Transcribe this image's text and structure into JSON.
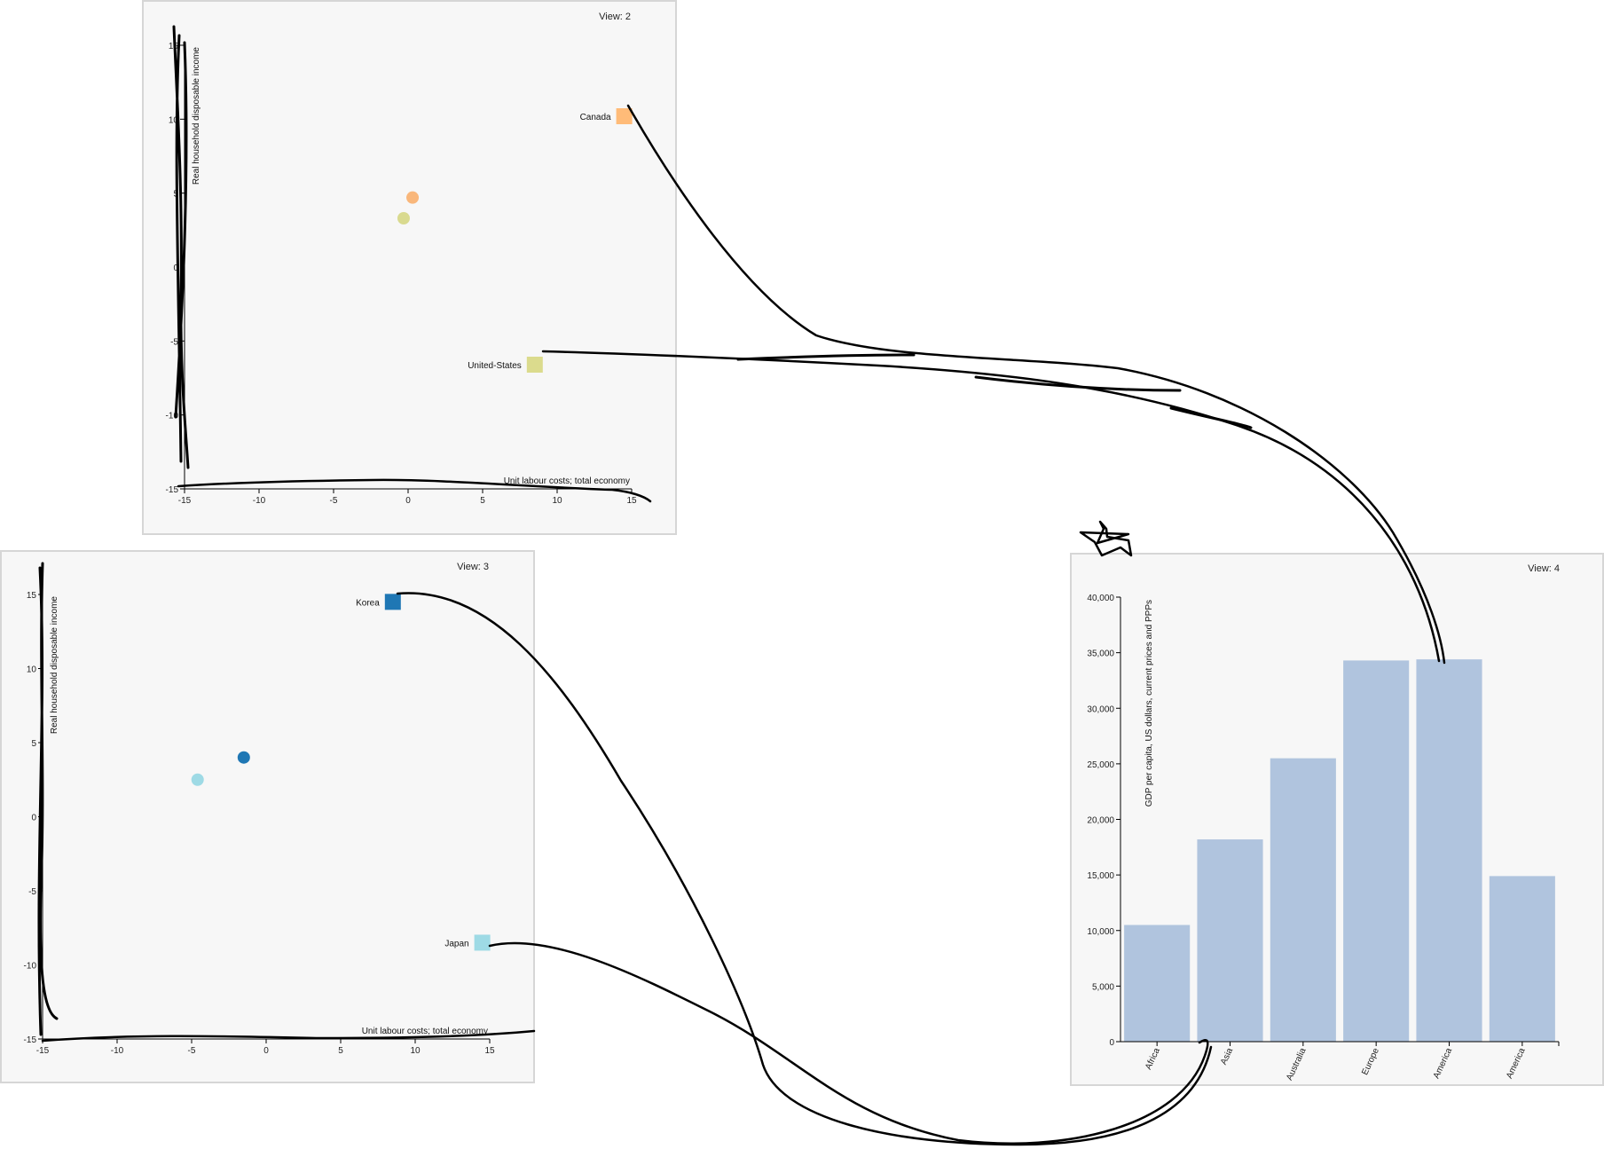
{
  "chart_data": [
    {
      "type": "scatter",
      "view_label": "View: 2",
      "xlabel": "Unit labour costs; total economy",
      "ylabel": "Real household disposable income",
      "xlim": [
        -15,
        15
      ],
      "ylim": [
        -15,
        15
      ],
      "x_ticks": [
        "-15",
        "-10",
        "-5",
        "0",
        "5",
        "10",
        "15"
      ],
      "y_ticks": [
        "-15",
        "-10",
        "-5",
        "0",
        "5",
        "10",
        "15"
      ],
      "points": [
        {
          "x": 0.3,
          "y": 4.7,
          "color": "#f9b77b"
        },
        {
          "x": -0.3,
          "y": 3.3,
          "color": "#d9da8f"
        }
      ],
      "legend": [
        {
          "name": "Canada",
          "color": "#ffbb78",
          "x": 14.5,
          "y": 10.2
        },
        {
          "name": "United-States",
          "color": "#dbdb8d",
          "x": 8.5,
          "y": -6.6
        }
      ]
    },
    {
      "type": "scatter",
      "view_label": "View: 3",
      "xlabel": "Unit labour costs; total economy",
      "ylabel": "Real household disposable income",
      "xlim": [
        -15,
        15
      ],
      "ylim": [
        -15,
        15
      ],
      "x_ticks": [
        "-15",
        "-10",
        "-5",
        "0",
        "5",
        "10",
        "15"
      ],
      "y_ticks": [
        "-15",
        "-10",
        "-5",
        "0",
        "5",
        "10",
        "15"
      ],
      "points": [
        {
          "x": -1.5,
          "y": 4.0,
          "color": "#1f77b4"
        },
        {
          "x": -4.6,
          "y": 2.5,
          "color": "#9edae5"
        }
      ],
      "legend": [
        {
          "name": "Korea",
          "color": "#1f77b4",
          "x": 8.5,
          "y": 14.5
        },
        {
          "name": "Japan",
          "color": "#9edae5",
          "x": 14.5,
          "y": -8.5
        }
      ]
    },
    {
      "type": "bar",
      "view_label": "View: 4",
      "categories": [
        "Africa",
        "Asia",
        "Australia",
        "Europe",
        "America",
        "America"
      ],
      "values": [
        10500,
        18200,
        25500,
        34300,
        34400,
        14900
      ],
      "ylabel": "GDP per capita, US dollars, current prices and PPPs",
      "ylim": [
        0,
        40000
      ],
      "y_ticks": [
        "0",
        "5,000",
        "10,000",
        "15,000",
        "20,000",
        "25,000",
        "30,000",
        "35,000",
        "40,000"
      ],
      "bar_color": "#b0c4de"
    }
  ]
}
